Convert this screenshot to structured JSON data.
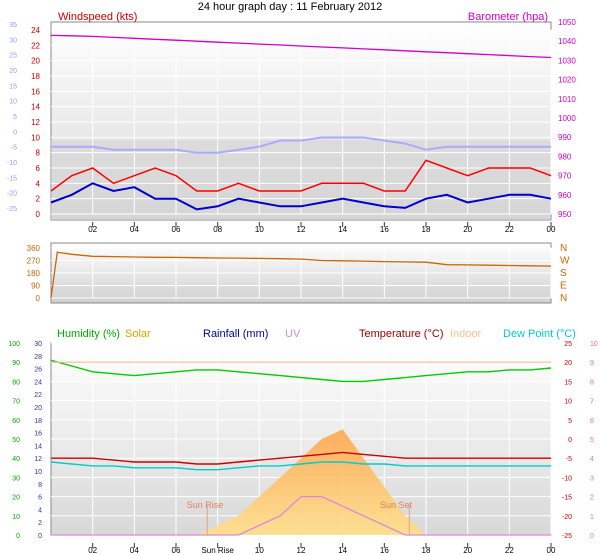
{
  "title": "24 hour graph day : 11 February 2012",
  "x_ticks": [
    "02",
    "04",
    "06",
    "08",
    "10",
    "12",
    "14",
    "16",
    "18",
    "20",
    "22",
    "00"
  ],
  "x_ticks_bottom": [
    "02",
    "04",
    "06",
    "Sun Rise",
    "10",
    "12",
    "14",
    "16",
    "18",
    "20",
    "22",
    "00"
  ],
  "colors": {
    "wind": "#ff0000",
    "gust_line": "#0000cc",
    "barometer": "#cc00cc",
    "temp_axis": "#aaaaff",
    "direction": "#cc6600",
    "humidity": "#00cc00",
    "temperature": "#cc0000",
    "dew": "#00cccc",
    "indoor": "#ffbb99",
    "solar": "#ffaa00",
    "uv": "#dd88dd",
    "rain": "#333399",
    "sun_marker": "#e8a090"
  },
  "panel1": {
    "left_label": "Windspeed (kts)",
    "right_label": "Barometer (hpa)",
    "outer_left_ticks": [
      "35",
      "30",
      "25",
      "20",
      "15",
      "10",
      "5",
      "0",
      "-5",
      "-10",
      "-15",
      "-20",
      "-25"
    ],
    "left_ticks": [
      "24",
      "22",
      "20",
      "18",
      "16",
      "14",
      "12",
      "10",
      "8",
      "6",
      "4",
      "2",
      "0"
    ],
    "right_ticks": [
      "1050",
      "1040",
      "1030",
      "1020",
      "1010",
      "1000",
      "990",
      "980",
      "970",
      "960",
      "950"
    ]
  },
  "panel2": {
    "left_ticks": [
      "360",
      "270",
      "180",
      "90",
      "0"
    ],
    "right_ticks": [
      "N",
      "W",
      "S",
      "E",
      "N"
    ]
  },
  "panel3": {
    "labels": {
      "humidity": "Humidity (%)",
      "solar": "Solar",
      "rainfall": "Rainfall (mm)",
      "uv": "UV",
      "temperature": "Temperature (°C)",
      "indoor": "Indoor",
      "dew": "Dew Point (°C)"
    },
    "outer_left_ticks": [
      "100",
      "90",
      "80",
      "70",
      "60",
      "50",
      "40",
      "30",
      "20",
      "10",
      "0"
    ],
    "left_ticks": [
      "30",
      "28",
      "26",
      "24",
      "22",
      "20",
      "18",
      "16",
      "14",
      "12",
      "10",
      "8",
      "6",
      "4",
      "2",
      "0"
    ],
    "right_ticks": [
      "25",
      "20",
      "15",
      "10",
      "5",
      "0",
      "-5",
      "-10",
      "-15",
      "-20",
      "-25"
    ],
    "outer_right_ticks": [
      "10",
      "9",
      "8",
      "7",
      "6",
      "5",
      "4",
      "3",
      "2",
      "1",
      "0"
    ],
    "sunrise_label": "Sun Rise",
    "sunset_label": "Sun Set"
  },
  "chart_data": [
    {
      "type": "line",
      "x": [
        0,
        1,
        2,
        3,
        4,
        5,
        6,
        7,
        8,
        9,
        10,
        11,
        12,
        13,
        14,
        15,
        16,
        17,
        18,
        19,
        20,
        21,
        22,
        23,
        24
      ],
      "series": [
        {
          "name": "Barometer (hpa)",
          "values": [
            1043,
            1042.8,
            1042.5,
            1042,
            1041.5,
            1041,
            1040.5,
            1040,
            1039.5,
            1039,
            1038.5,
            1038,
            1037.5,
            1037,
            1036.5,
            1036,
            1035.5,
            1035,
            1034.5,
            1034,
            1033.5,
            1033,
            1032.5,
            1032,
            1031.5
          ]
        },
        {
          "name": "Windspeed (kts)",
          "values": [
            3,
            5,
            6,
            4,
            5,
            6,
            5,
            3,
            3,
            4,
            3,
            3,
            3,
            4,
            4,
            4,
            3,
            3,
            7,
            6,
            5,
            6,
            6,
            6,
            5
          ]
        },
        {
          "name": "Average wind",
          "values": [
            1.5,
            2.5,
            4,
            3,
            3.5,
            2,
            2,
            0.6,
            1,
            2,
            1.5,
            1,
            1,
            1.5,
            2,
            1.5,
            1,
            0.8,
            2,
            2.5,
            1.5,
            2,
            2.5,
            2.5,
            2
          ]
        },
        {
          "name": "Temperature",
          "values": [
            -5,
            -5,
            -5,
            -6,
            -6,
            -6,
            -6,
            -7,
            -7,
            -6,
            -5,
            -3,
            -3,
            -2,
            -2,
            -2,
            -3,
            -4,
            -6,
            -5,
            -5,
            -5,
            -5,
            -5,
            -5
          ]
        }
      ],
      "ylim_windspeed": [
        0,
        24
      ],
      "ylim_barometer": [
        950,
        1050
      ]
    },
    {
      "type": "line",
      "x": [
        0,
        0.3,
        1,
        2,
        3,
        4,
        5,
        6,
        7,
        8,
        9,
        10,
        11,
        12,
        13,
        14,
        15,
        16,
        17,
        18,
        19,
        20,
        21,
        22,
        23,
        24
      ],
      "series": [
        {
          "name": "Wind direction",
          "values": [
            0,
            330,
            315,
            300,
            298,
            295,
            293,
            292,
            290,
            288,
            287,
            285,
            283,
            280,
            270,
            268,
            266,
            262,
            260,
            258,
            240,
            238,
            236,
            234,
            232,
            230
          ]
        }
      ],
      "ylim": [
        0,
        360
      ]
    },
    {
      "type": "line",
      "x": [
        0,
        1,
        2,
        3,
        4,
        5,
        6,
        7,
        8,
        9,
        10,
        11,
        12,
        13,
        14,
        15,
        16,
        17,
        18,
        19,
        20,
        21,
        22,
        23,
        24
      ],
      "series": [
        {
          "name": "Humidity (%)",
          "values": [
            91,
            88,
            85,
            84,
            83,
            84,
            85,
            86,
            86,
            85,
            84,
            83,
            82,
            81,
            80,
            80,
            81,
            82,
            83,
            84,
            85,
            85,
            86,
            86,
            87
          ]
        },
        {
          "name": "Indoor",
          "values": [
            20,
            20,
            20,
            20,
            20,
            20,
            20,
            20,
            20,
            20,
            20,
            20,
            20,
            20,
            20,
            20,
            20,
            20,
            20,
            20,
            20,
            20,
            20,
            20,
            20
          ]
        },
        {
          "name": "Temperature (°C)",
          "values": [
            -5,
            -5,
            -5,
            -5.5,
            -6,
            -6,
            -6,
            -6.5,
            -6.5,
            -6,
            -5.5,
            -5,
            -4.5,
            -4,
            -3.5,
            -4,
            -4.5,
            -5,
            -5,
            -5,
            -5,
            -5,
            -5,
            -5,
            -5
          ]
        },
        {
          "name": "Dew Point (°C)",
          "values": [
            -6,
            -6.5,
            -7,
            -7,
            -7.5,
            -7.5,
            -7.5,
            -8,
            -8,
            -7.5,
            -7,
            -7,
            -6.5,
            -6,
            -6,
            -6.5,
            -6.5,
            -7,
            -7,
            -7,
            -7,
            -7,
            -7,
            -7,
            -7
          ]
        },
        {
          "name": "Solar",
          "values": [
            0,
            0,
            0,
            0,
            0,
            0,
            0,
            0,
            0.5,
            1,
            2,
            3,
            4,
            5,
            5.5,
            4,
            2.5,
            1,
            0,
            0,
            0,
            0,
            0,
            0,
            0
          ]
        },
        {
          "name": "UV",
          "values": [
            0,
            0,
            0,
            0,
            0,
            0,
            0,
            0,
            0,
            0,
            0.5,
            1,
            2,
            2,
            1.5,
            1,
            0.5,
            0,
            0,
            0,
            0,
            0,
            0,
            0,
            0
          ]
        }
      ]
    }
  ]
}
